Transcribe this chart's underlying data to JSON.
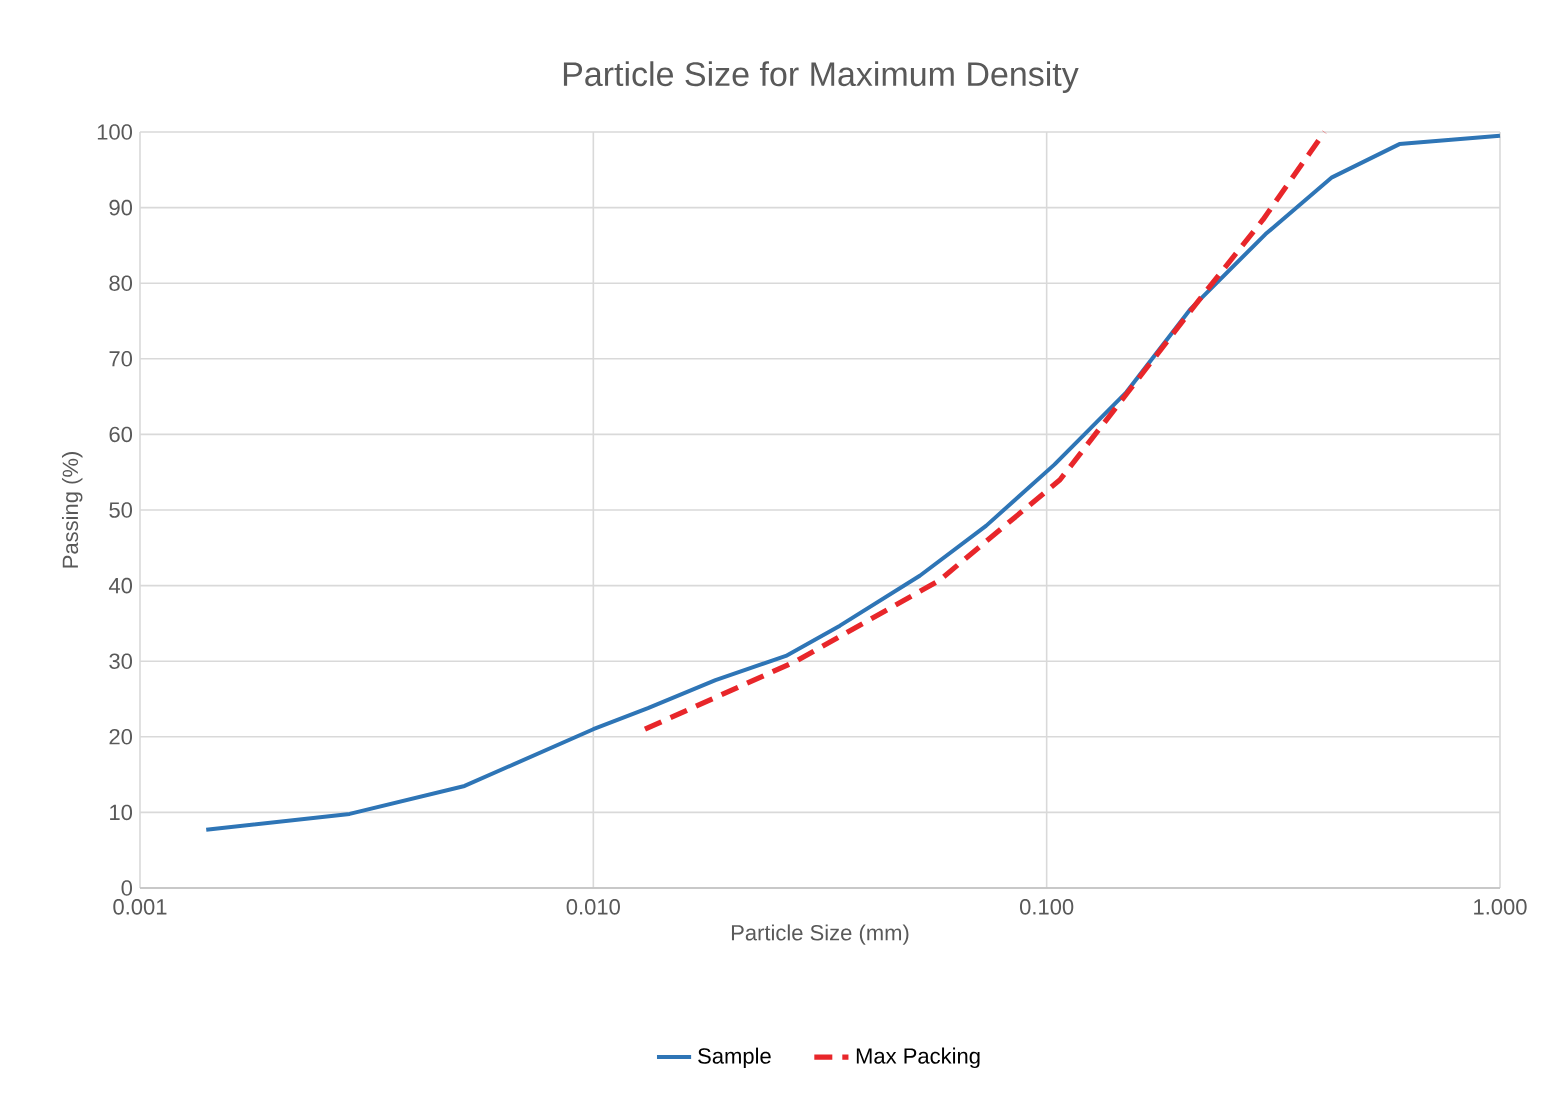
{
  "chart_data": {
    "type": "line",
    "title": "Particle Size for Maximum Density",
    "xlabel": "Particle Size (mm)",
    "ylabel": "Passing (%)",
    "log": "x",
    "xlim": [
      0.001,
      1
    ],
    "xticks": [
      {
        "value": 0.001,
        "label": "0.001"
      },
      {
        "value": 0.01,
        "label": "0.010"
      },
      {
        "value": 0.1,
        "label": "0.100"
      },
      {
        "value": 1,
        "label": "1.000"
      }
    ],
    "ylim": [
      0,
      100
    ],
    "yticks": [
      0,
      10,
      20,
      30,
      40,
      50,
      60,
      70,
      80,
      90,
      100
    ],
    "grid": true,
    "legend": "bottom",
    "series": [
      {
        "name": "Sample",
        "color": "#2e75b6",
        "line_style": "solid",
        "x": [
          0.0014,
          0.0029,
          0.0052,
          0.01,
          0.0132,
          0.0186,
          0.0266,
          0.035,
          0.0525,
          0.0735,
          0.104,
          0.15,
          0.207,
          0.304,
          0.426,
          0.6,
          1.0
        ],
        "values": [
          7.7,
          9.8,
          13.5,
          21,
          23.8,
          27.5,
          30.7,
          34.7,
          41.3,
          47.9,
          56,
          65.6,
          76.5,
          86.5,
          94,
          98.4,
          99.5
        ]
      },
      {
        "name": "Max Packing",
        "color": "#e8262a",
        "line_style": "dashed",
        "x": [
          0.013,
          0.028,
          0.058,
          0.107,
          0.153,
          0.217,
          0.3,
          0.41
        ],
        "values": [
          21,
          30,
          40.7,
          54,
          66,
          77.8,
          88.4,
          100
        ]
      }
    ]
  }
}
